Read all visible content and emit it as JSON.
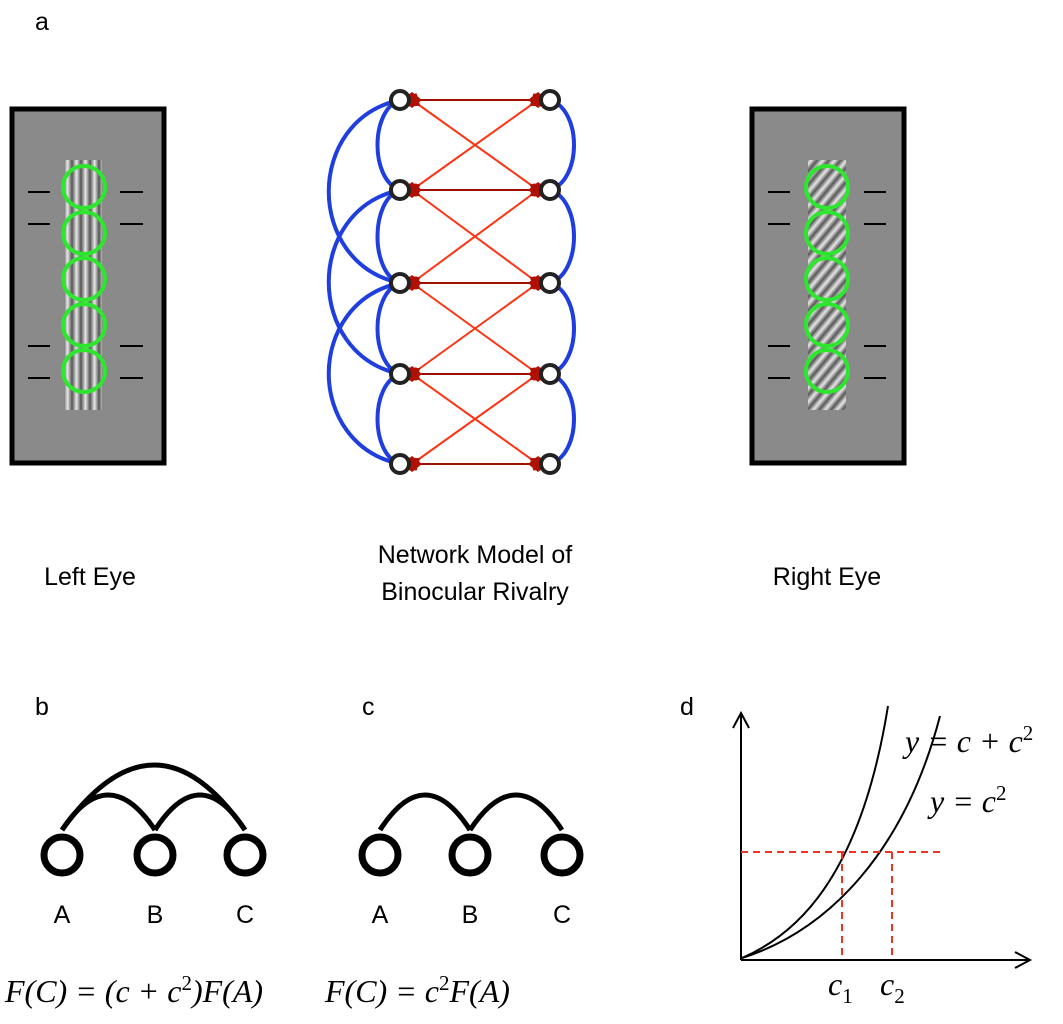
{
  "panel_labels": {
    "a": "a",
    "b": "b",
    "c": "c",
    "d": "d"
  },
  "panel_a": {
    "left_label": "Left Eye",
    "center_label": [
      "Network Model of",
      "Binocular Rivalry"
    ],
    "right_label": "Right Eye"
  },
  "panel_b": {
    "nodes": [
      "A",
      "B",
      "C"
    ],
    "formula": {
      "before": "F(C) = (c + c",
      "sup": "2",
      "after": ")F(A)"
    }
  },
  "panel_c": {
    "nodes": [
      "A",
      "B",
      "C"
    ],
    "formula": {
      "before": "F(C) = c",
      "sup": "2",
      "after": "F(A)"
    }
  },
  "panel_d": {
    "curve_1": {
      "base": "y = c + c",
      "sup": "2"
    },
    "curve_2": {
      "base": "y = c",
      "sup": "2"
    },
    "c1": {
      "base": "c",
      "sub": "1"
    },
    "c2": {
      "base": "c",
      "sub": "2"
    }
  }
}
